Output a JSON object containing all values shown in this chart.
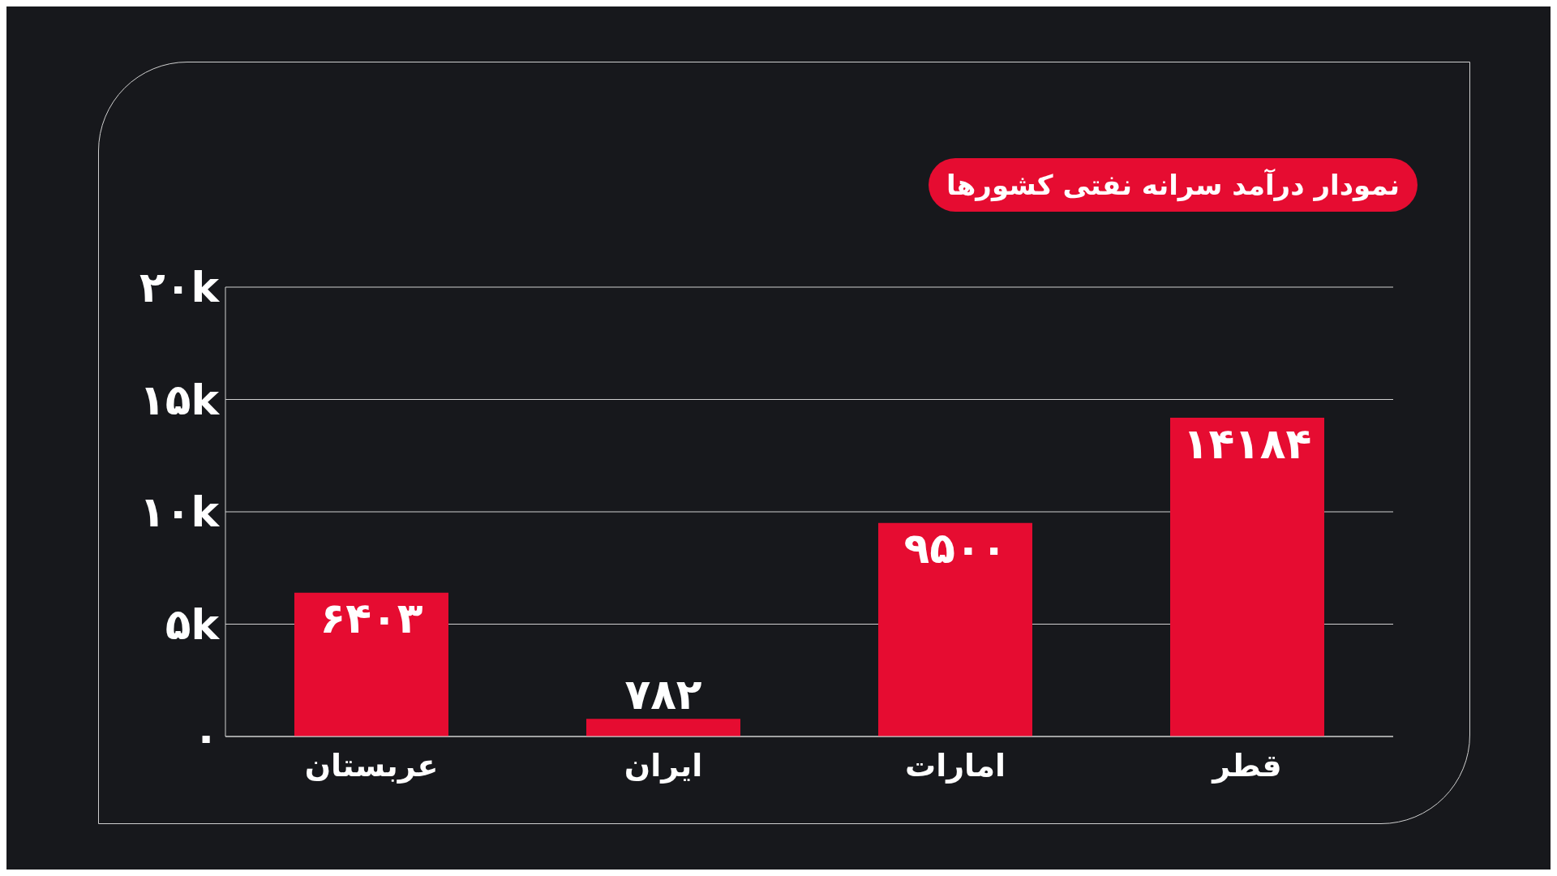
{
  "chart_data": {
    "type": "bar",
    "title": "نمودار درآمد سرانه نفتی کشورها",
    "categories": [
      "عربستان",
      "ایران",
      "امارات",
      "قطر"
    ],
    "values": [
      6403,
      782,
      9500,
      14184
    ],
    "value_labels": [
      "۶۴۰۳",
      "۷۸۲",
      "۹۵۰۰",
      "۱۴۱۸۴"
    ],
    "color": "#e60c31",
    "ylim": [
      0,
      20000
    ],
    "yticks": [
      {
        "value": 0,
        "label": "۰"
      },
      {
        "value": 5000,
        "label": "۵k"
      },
      {
        "value": 10000,
        "label": "۱۰k"
      },
      {
        "value": 15000,
        "label": "۱۵k"
      },
      {
        "value": 20000,
        "label": "۲۰k"
      }
    ],
    "grid": "y"
  }
}
